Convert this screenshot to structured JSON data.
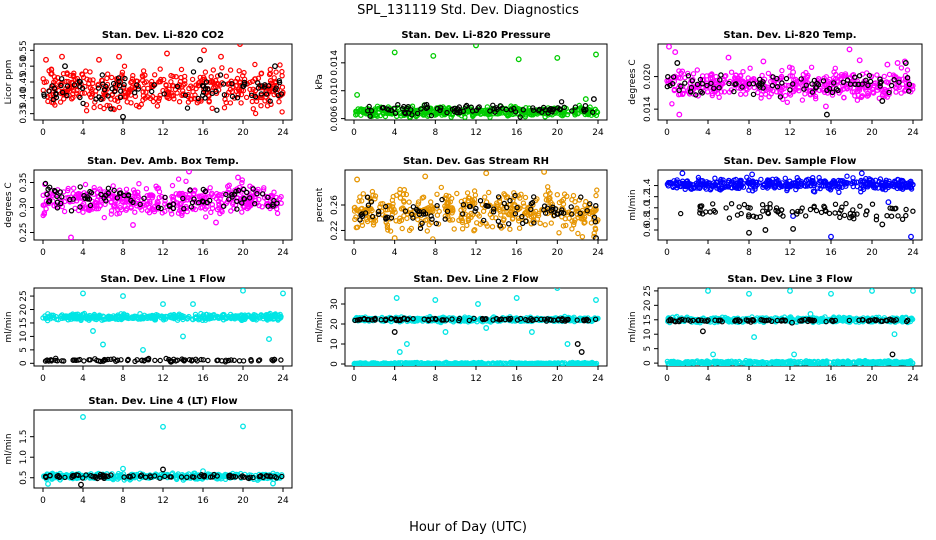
{
  "figure": {
    "title": "SPL_131119  Std. Dev. Diagnostics",
    "xlabel": "Hour of Day (UTC)"
  },
  "x_ticks": [
    "0",
    "4",
    "8",
    "12",
    "16",
    "20",
    "24"
  ],
  "chart_data": [
    {
      "type": "scatter",
      "title": "Stan. Dev. Li-820 CO2",
      "ylabel": "Licor ppm",
      "xlim": [
        0,
        24
      ],
      "ylim": [
        0.33,
        0.57
      ],
      "yticks": [
        "0.35",
        "0.40",
        "0.45",
        "0.50",
        "0.55"
      ],
      "series": [
        {
          "color": "#ff0000",
          "band": [
            0.36,
            0.5
          ],
          "outliers": [
            [
              0.3,
              0.52
            ],
            [
              1.9,
              0.53
            ],
            [
              7.6,
              0.53
            ],
            [
              12.4,
              0.54
            ],
            [
              16.1,
              0.55
            ],
            [
              19.7,
              0.57
            ],
            [
              17.8,
              0.53
            ],
            [
              5.6,
              0.52
            ]
          ]
        },
        {
          "color": "#000000",
          "band": [
            0.37,
            0.48
          ],
          "outliers": [
            [
              2.2,
              0.5
            ],
            [
              8.0,
              0.34
            ],
            [
              15.7,
              0.52
            ],
            [
              23.2,
              0.5
            ]
          ]
        }
      ]
    },
    {
      "type": "scatter",
      "title": "Stan. Dev. Li-820 Pressure",
      "ylabel": "kPa",
      "xlim": [
        0,
        24
      ],
      "ylim": [
        0.0058,
        0.0167
      ],
      "yticks": [
        "0.006",
        "0.010",
        "0.014"
      ],
      "series": [
        {
          "color": "#00cc00",
          "band": [
            0.0062,
            0.0078
          ],
          "outliers": [
            [
              0.3,
              0.0094
            ],
            [
              4.0,
              0.0155
            ],
            [
              7.8,
              0.015
            ],
            [
              12.0,
              0.0165
            ],
            [
              16.2,
              0.0145
            ],
            [
              20.0,
              0.0147
            ],
            [
              23.8,
              0.0152
            ],
            [
              22.8,
              0.0088
            ]
          ]
        },
        {
          "color": "#000000",
          "band": [
            0.0064,
            0.0082
          ],
          "outliers": [
            [
              23.6,
              0.0088
            ]
          ]
        }
      ]
    },
    {
      "type": "scatter",
      "title": "Stan. Dev. Li-820 Temp.",
      "ylabel": "degrees C",
      "xlim": [
        0,
        24
      ],
      "ylim": [
        0.012,
        0.026
      ],
      "yticks": [
        "0.014",
        "0.020"
      ],
      "series": [
        {
          "color": "#ff00ff",
          "band": [
            0.0155,
            0.0215
          ],
          "outliers": [
            [
              0.2,
              0.0255
            ],
            [
              0.8,
              0.0245
            ],
            [
              1.2,
              0.013
            ],
            [
              6.0,
              0.0235
            ],
            [
              9.4,
              0.0228
            ],
            [
              12.3,
              0.0208
            ],
            [
              15.5,
              0.0145
            ],
            [
              17.8,
              0.025
            ],
            [
              18.8,
              0.023
            ],
            [
              21.5,
              0.0222
            ],
            [
              22.5,
              0.0225
            ],
            [
              23.2,
              0.0228
            ]
          ]
        },
        {
          "color": "#000000",
          "band": [
            0.0165,
            0.0205
          ],
          "outliers": [
            [
              1.0,
              0.0225
            ],
            [
              15.6,
              0.013
            ],
            [
              21.0,
              0.0155
            ],
            [
              23.3,
              0.0225
            ]
          ]
        }
      ]
    },
    {
      "type": "scatter",
      "title": "Stan. Dev. Amb. Box Temp.",
      "ylabel": "degrees C",
      "xlim": [
        0,
        24
      ],
      "ylim": [
        0.235,
        0.375
      ],
      "yticks": [
        "0.25",
        "0.30",
        "0.35"
      ],
      "series": [
        {
          "color": "#ff00ff",
          "band": [
            0.28,
            0.35
          ],
          "outliers": [
            [
              2.8,
              0.24
            ],
            [
              9.0,
              0.265
            ],
            [
              14.6,
              0.372
            ],
            [
              19.5,
              0.36
            ],
            [
              17.3,
              0.27
            ]
          ]
        },
        {
          "color": "#000000",
          "band": [
            0.29,
            0.35
          ],
          "outliers": []
        }
      ]
    },
    {
      "type": "scatter",
      "title": "Stan. Dev. Gas Stream RH",
      "ylabel": "percent",
      "xlim": [
        0,
        24
      ],
      "ylim": [
        0.205,
        0.315
      ],
      "yticks": [
        "0.22",
        "0.26"
      ],
      "series": [
        {
          "color": "#e69500",
          "band": [
            0.215,
            0.285
          ],
          "outliers": [
            [
              0.3,
              0.3
            ],
            [
              7.0,
              0.305
            ],
            [
              13.0,
              0.31
            ],
            [
              18.7,
              0.312
            ],
            [
              4.0,
              0.208
            ]
          ]
        },
        {
          "color": "#000000",
          "band": [
            0.225,
            0.275
          ],
          "outliers": [
            [
              23.8,
              0.208
            ]
          ]
        }
      ]
    },
    {
      "type": "scatter",
      "title": "Stan. Dev. Sample Flow",
      "ylabel": "ml/min",
      "xlim": [
        0,
        24
      ],
      "ylim": [
        0.42,
        1.68
      ],
      "yticks": [
        "0.6",
        "0.8",
        "1.0",
        "1.2",
        "1.4"
      ],
      "series": [
        {
          "color": "#0000ff",
          "band": [
            1.3,
            1.55
          ],
          "outliers": [
            [
              1.5,
              1.62
            ],
            [
              8.3,
              1.6
            ],
            [
              12.3,
              0.85
            ],
            [
              16.0,
              0.48
            ],
            [
              19.0,
              1.62
            ],
            [
              21.6,
              1.1
            ],
            [
              23.8,
              0.48
            ]
          ]
        },
        {
          "color": "#000000",
          "band": [
            0.78,
            1.1
          ],
          "outliers": [
            [
              8.0,
              0.55
            ],
            [
              12.3,
              0.62
            ],
            [
              9.6,
              0.6
            ],
            [
              21.0,
              0.7
            ]
          ]
        }
      ]
    },
    {
      "type": "scatter",
      "title": "Stan. Dev. Line 1 Flow",
      "ylabel": "ml/min",
      "xlim": [
        0,
        24
      ],
      "ylim": [
        -1,
        28
      ],
      "yticks": [
        "0",
        "5",
        "10",
        "15",
        "20",
        "25"
      ],
      "series": [
        {
          "color": "#00e5e5",
          "band": [
            16.0,
            18.5
          ],
          "outliers": [
            [
              4.0,
              26
            ],
            [
              8.0,
              25
            ],
            [
              12.0,
              22
            ],
            [
              15.0,
              22
            ],
            [
              20.0,
              27
            ],
            [
              24.0,
              26
            ],
            [
              5.0,
              12
            ],
            [
              6.0,
              7
            ],
            [
              10.0,
              5
            ],
            [
              14.0,
              10
            ],
            [
              22.6,
              9
            ]
          ]
        },
        {
          "color": "#000000",
          "band": [
            0.5,
            1.8
          ],
          "outliers": []
        }
      ]
    },
    {
      "type": "scatter",
      "title": "Stan. Dev. Line 2 Flow",
      "ylabel": "ml/min",
      "xlim": [
        0,
        24
      ],
      "ylim": [
        -1,
        38
      ],
      "yticks": [
        "0",
        "10",
        "20",
        "30"
      ],
      "series": [
        {
          "color": "#00e5e5",
          "band": [
            21.0,
            23.5
          ],
          "outliers": [
            [
              4.2,
              33
            ],
            [
              8.0,
              32
            ],
            [
              12.2,
              30
            ],
            [
              16.0,
              33
            ],
            [
              20.0,
              38
            ],
            [
              23.8,
              32
            ],
            [
              4.5,
              6
            ],
            [
              5.2,
              10
            ],
            [
              9.0,
              16
            ],
            [
              13.0,
              18
            ],
            [
              17.5,
              16
            ],
            [
              21.0,
              10
            ]
          ]
        },
        {
          "color": "#000000",
          "band": [
            21.5,
            23.0
          ],
          "outliers": [
            [
              4.0,
              16
            ],
            [
              22.0,
              10
            ],
            [
              22.4,
              6
            ]
          ]
        },
        {
          "color": "#00e5e5",
          "band": [
            -0.5,
            0.8
          ],
          "outliers": []
        }
      ]
    },
    {
      "type": "scatter",
      "title": "Stan. Dev. Line 3 Flow",
      "ylabel": "ml/min",
      "xlim": [
        0,
        24
      ],
      "ylim": [
        -1,
        26
      ],
      "yticks": [
        "0",
        "5",
        "10",
        "15",
        "20",
        "25"
      ],
      "series": [
        {
          "color": "#00e5e5",
          "band": [
            14.0,
            16.0
          ],
          "outliers": [
            [
              4.0,
              25
            ],
            [
              8.0,
              24
            ],
            [
              12.0,
              25
            ],
            [
              16.0,
              24
            ],
            [
              20.0,
              25
            ],
            [
              24.0,
              25
            ],
            [
              4.5,
              3
            ],
            [
              8.5,
              9
            ],
            [
              12.4,
              3
            ],
            [
              14.0,
              17
            ],
            [
              22.2,
              10
            ]
          ]
        },
        {
          "color": "#000000",
          "band": [
            14.2,
            15.2
          ],
          "outliers": [
            [
              3.5,
              11
            ],
            [
              12.2,
              14
            ],
            [
              22.0,
              3
            ]
          ]
        },
        {
          "color": "#00e5e5",
          "band": [
            -0.4,
            0.8
          ],
          "outliers": []
        }
      ]
    },
    {
      "type": "scatter",
      "title": "Stan. Dev. Line 4 (LT) Flow",
      "ylabel": "ml/min",
      "xlim": [
        0,
        24
      ],
      "ylim": [
        0.25,
        2.15
      ],
      "yticks": [
        "0.5",
        "1.0",
        "1.5"
      ],
      "series": [
        {
          "color": "#00e5e5",
          "band": [
            0.45,
            0.62
          ],
          "outliers": [
            [
              4.0,
              1.98
            ],
            [
              12.0,
              1.74
            ],
            [
              20.0,
              1.75
            ],
            [
              0.5,
              0.35
            ],
            [
              8.0,
              0.72
            ],
            [
              16.0,
              0.66
            ],
            [
              23.0,
              0.36
            ]
          ]
        },
        {
          "color": "#000000",
          "band": [
            0.48,
            0.58
          ],
          "outliers": [
            [
              3.8,
              0.33
            ],
            [
              12.0,
              0.7
            ]
          ]
        }
      ]
    }
  ]
}
